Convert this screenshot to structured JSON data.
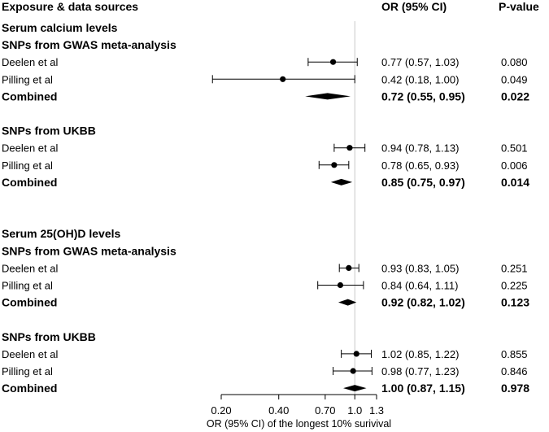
{
  "header": {
    "exposure": "Exposure & data sources",
    "or": "OR (95% CI)",
    "p": "P-value"
  },
  "chart_data": {
    "type": "forest",
    "xlabel": "OR (95% CI) of the longest 10% surivival",
    "x_ticks": [
      0.2,
      0.4,
      0.7,
      1.0,
      1.3
    ],
    "x_tick_labels": [
      "0.20",
      "0.40",
      "0.70",
      "1.0",
      "1.3"
    ],
    "x_range": [
      0.2,
      1.3
    ],
    "reference_line": 1.0,
    "rows": [
      {
        "label": "Serum calcium levels",
        "kind": "section"
      },
      {
        "label": "SNPs from GWAS meta-analysis",
        "kind": "subsection"
      },
      {
        "label": "Deelen et al",
        "kind": "study",
        "or": 0.77,
        "lo": 0.57,
        "hi": 1.03,
        "or_text": "0.77 (0.57, 1.03)",
        "p_text": "0.080"
      },
      {
        "label": "Pilling et al",
        "kind": "study",
        "or": 0.42,
        "lo": 0.18,
        "hi": 1.0,
        "or_text": "0.42 (0.18, 1.00)",
        "p_text": "0.049"
      },
      {
        "label": "Combined",
        "kind": "combined",
        "or": 0.72,
        "lo": 0.55,
        "hi": 0.95,
        "or_text": "0.72 (0.55, 0.95)",
        "p_text": "0.022"
      },
      {
        "kind": "blank"
      },
      {
        "label": "SNPs from UKBB",
        "kind": "subsection"
      },
      {
        "label": "Deelen et al",
        "kind": "study",
        "or": 0.94,
        "lo": 0.78,
        "hi": 1.13,
        "or_text": "0.94 (0.78, 1.13)",
        "p_text": "0.501"
      },
      {
        "label": "Pilling et al",
        "kind": "study",
        "or": 0.78,
        "lo": 0.65,
        "hi": 0.93,
        "or_text": "0.78 (0.65, 0.93)",
        "p_text": "0.006"
      },
      {
        "label": "Combined",
        "kind": "combined",
        "or": 0.85,
        "lo": 0.75,
        "hi": 0.97,
        "or_text": "0.85 (0.75, 0.97)",
        "p_text": "0.014"
      },
      {
        "kind": "blank"
      },
      {
        "kind": "blank"
      },
      {
        "label": "Serum 25(OH)D levels",
        "kind": "section"
      },
      {
        "label": "SNPs from GWAS meta-analysis",
        "kind": "subsection"
      },
      {
        "label": "Deelen et al",
        "kind": "study",
        "or": 0.93,
        "lo": 0.83,
        "hi": 1.05,
        "or_text": "0.93 (0.83, 1.05)",
        "p_text": "0.251"
      },
      {
        "label": "Pilling et al",
        "kind": "study",
        "or": 0.84,
        "lo": 0.64,
        "hi": 1.11,
        "or_text": "0.84 (0.64, 1.11)",
        "p_text": "0.225"
      },
      {
        "label": "Combined",
        "kind": "combined",
        "or": 0.92,
        "lo": 0.82,
        "hi": 1.02,
        "or_text": "0.92 (0.82, 1.02)",
        "p_text": "0.123"
      },
      {
        "kind": "blank"
      },
      {
        "label": "SNPs from UKBB",
        "kind": "subsection"
      },
      {
        "label": "Deelen et al",
        "kind": "study",
        "or": 1.02,
        "lo": 0.85,
        "hi": 1.22,
        "or_text": "1.02 (0.85, 1.22)",
        "p_text": "0.855"
      },
      {
        "label": "Pilling et al",
        "kind": "study",
        "or": 0.98,
        "lo": 0.77,
        "hi": 1.23,
        "or_text": "0.98 (0.77, 1.23)",
        "p_text": "0.846"
      },
      {
        "label": "Combined",
        "kind": "combined",
        "or": 1.0,
        "lo": 0.87,
        "hi": 1.15,
        "or_text": "1.00 (0.87, 1.15)",
        "p_text": "0.978"
      }
    ]
  }
}
